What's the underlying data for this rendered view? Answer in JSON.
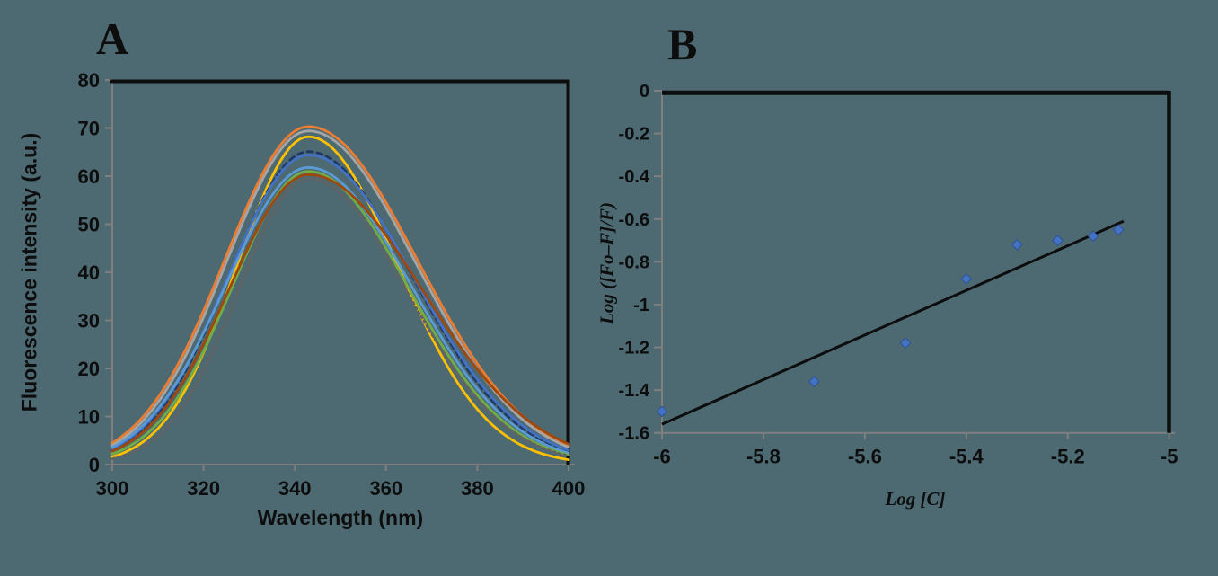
{
  "colors": {
    "background": "#4D6A73",
    "axis": "#7F7F7F",
    "text": "#0d0d0d"
  },
  "chart_data": [
    {
      "id": "A",
      "type": "line",
      "panel_label": "A",
      "xlabel": "Wavelength (nm)",
      "ylabel": "Fluorescence intensity (a.u.)",
      "xlim": [
        300,
        400
      ],
      "ylim": [
        0,
        80
      ],
      "x_ticks": [
        "300",
        "320",
        "340",
        "360",
        "380",
        "400"
      ],
      "y_ticks": [
        "0",
        "10",
        "20",
        "30",
        "40",
        "50",
        "60",
        "70",
        "80"
      ],
      "grid": false,
      "legend": "none",
      "peak_wavelength_nm": 343,
      "series": [
        {
          "name": "spectrum-orange",
          "color": "#ED7D31",
          "dash": "",
          "peak": 70.3,
          "at_xmin": 4.5,
          "at_xmax": 4.0
        },
        {
          "name": "spectrum-gray",
          "color": "#A5A5A5",
          "dash": "",
          "peak": 69.4,
          "at_xmin": 4.0,
          "at_xmax": 3.6
        },
        {
          "name": "spectrum-gold",
          "color": "#FFC000",
          "dash": "",
          "peak": 68.2,
          "at_xmin": 1.6,
          "at_xmax": 1.0
        },
        {
          "name": "spectrum-navy-dashed",
          "color": "#1F3864",
          "dash": "6 5",
          "peak": 65.1,
          "at_xmin": 3.0,
          "at_xmax": 2.7
        },
        {
          "name": "spectrum-blue",
          "color": "#4472C4",
          "dash": "",
          "peak": 64.4,
          "at_xmin": 3.3,
          "at_xmax": 3.0
        },
        {
          "name": "spectrum-lightblue",
          "color": "#5B9BD5",
          "dash": "",
          "peak": 61.8,
          "at_xmin": 3.6,
          "at_xmax": 2.4
        },
        {
          "name": "spectrum-green",
          "color": "#70AD47",
          "dash": "",
          "peak": 61.0,
          "at_xmin": 2.2,
          "at_xmax": 2.0
        },
        {
          "name": "spectrum-brown",
          "color": "#9E480E",
          "dash": "",
          "peak": 60.3,
          "at_xmin": 2.8,
          "at_xmax": 4.3
        },
        {
          "name": "spectrum-darkgray-dotted",
          "color": "#636363",
          "dash": "2.5 3.5",
          "peak": 59.5,
          "at_xmin": 1.2,
          "at_xmax": 1.8
        }
      ]
    },
    {
      "id": "B",
      "type": "scatter",
      "panel_label": "B",
      "xlabel": "Log [C]",
      "ylabel": "Log ([Fo–F]/F)",
      "xlim": [
        -6,
        -5
      ],
      "ylim": [
        -1.6,
        0
      ],
      "x_ticks": [
        "-6",
        "-5.8",
        "-5.6",
        "-5.4",
        "-5.2",
        "-5"
      ],
      "y_ticks": [
        "0",
        "-0.2",
        "-0.4",
        "-0.6",
        "-0.8",
        "-1",
        "-1.2",
        "-1.4",
        "-1.6"
      ],
      "grid": false,
      "legend": "none",
      "marker": {
        "shape": "diamond",
        "color": "#4472C4",
        "edge": "#2E5396"
      },
      "points": [
        {
          "x": -6.0,
          "y": -1.5
        },
        {
          "x": -5.7,
          "y": -1.36
        },
        {
          "x": -5.52,
          "y": -1.18
        },
        {
          "x": -5.4,
          "y": -0.88
        },
        {
          "x": -5.3,
          "y": -0.72
        },
        {
          "x": -5.22,
          "y": -0.7
        },
        {
          "x": -5.15,
          "y": -0.68
        },
        {
          "x": -5.1,
          "y": -0.65
        }
      ],
      "trendline": {
        "x1": -6.0,
        "y1": -1.56,
        "x2": -5.09,
        "y2": -0.61,
        "color": "#0d0d0d"
      }
    }
  ]
}
